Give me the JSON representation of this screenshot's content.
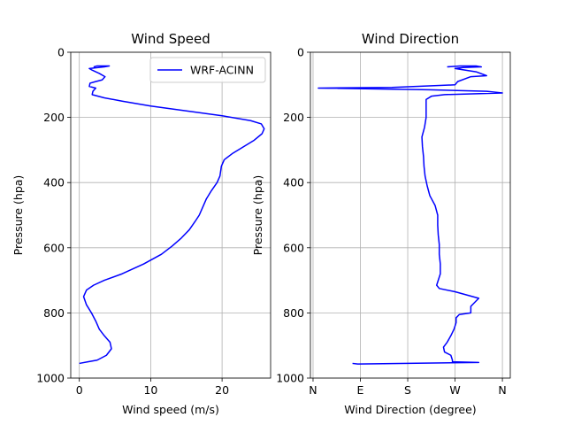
{
  "colors": {
    "series": "#0000ff",
    "grid": "#b0b0b0",
    "axis": "#000000"
  },
  "chart_data": [
    {
      "type": "line",
      "title": "Wind Speed",
      "xlabel": "Wind speed (m/s)",
      "ylabel": "Pressure (hpa)",
      "xlim": [
        -1.2,
        26.8
      ],
      "ylim": [
        1000,
        0
      ],
      "y_inverted": true,
      "grid": true,
      "legend": {
        "placement": "top-right",
        "entries": [
          "WRF-ACINN"
        ]
      },
      "xticks": [
        {
          "value": 0,
          "label": "0"
        },
        {
          "value": 10,
          "label": "10"
        },
        {
          "value": 20,
          "label": "20"
        }
      ],
      "yticks": [
        {
          "value": 0,
          "label": "0"
        },
        {
          "value": 200,
          "label": "200"
        },
        {
          "value": 400,
          "label": "400"
        },
        {
          "value": 600,
          "label": "600"
        },
        {
          "value": 800,
          "label": "800"
        },
        {
          "value": 1000,
          "label": "1000"
        }
      ],
      "series": [
        {
          "name": "WRF-ACINN",
          "color": "#0000ff",
          "points": [
            [
              0,
              955
            ],
            [
              1.2,
              950
            ],
            [
              2.5,
              945
            ],
            [
              3.8,
              930
            ],
            [
              4.5,
              910
            ],
            [
              4.3,
              890
            ],
            [
              3.5,
              870
            ],
            [
              2.8,
              850
            ],
            [
              2.3,
              825
            ],
            [
              1.7,
              800
            ],
            [
              1.0,
              775
            ],
            [
              0.6,
              750
            ],
            [
              1.0,
              730
            ],
            [
              2.0,
              715
            ],
            [
              3.5,
              700
            ],
            [
              6.0,
              680
            ],
            [
              9.0,
              650
            ],
            [
              11.5,
              620
            ],
            [
              13.0,
              595
            ],
            [
              14.3,
              570
            ],
            [
              15.4,
              545
            ],
            [
              16.2,
              520
            ],
            [
              16.8,
              500
            ],
            [
              17.3,
              475
            ],
            [
              17.8,
              450
            ],
            [
              18.5,
              425
            ],
            [
              19.3,
              400
            ],
            [
              19.7,
              380
            ],
            [
              19.9,
              350
            ],
            [
              20.3,
              330
            ],
            [
              21.5,
              310
            ],
            [
              23.0,
              290
            ],
            [
              24.5,
              270
            ],
            [
              25.6,
              250
            ],
            [
              25.9,
              235
            ],
            [
              25.5,
              220
            ],
            [
              24.0,
              210
            ],
            [
              20.0,
              195
            ],
            [
              15.0,
              180
            ],
            [
              10.0,
              165
            ],
            [
              6.0,
              150
            ],
            [
              3.5,
              140
            ],
            [
              1.8,
              130
            ],
            [
              1.9,
              120
            ],
            [
              2.3,
              110
            ],
            [
              1.4,
              105
            ],
            [
              1.5,
              95
            ],
            [
              2.3,
              90
            ],
            [
              3.2,
              85
            ],
            [
              3.6,
              75
            ],
            [
              2.8,
              65
            ],
            [
              1.8,
              55
            ],
            [
              1.4,
              50
            ],
            [
              3.5,
              45
            ],
            [
              4.2,
              42
            ],
            [
              2.5,
              42
            ],
            [
              2.0,
              45
            ]
          ]
        }
      ]
    },
    {
      "type": "line",
      "title": "Wind Direction",
      "xlabel": "Wind Direction (degree)",
      "ylabel": "Pressure (hpa)",
      "xlim": [
        -5,
        375
      ],
      "ylim": [
        1000,
        0
      ],
      "y_inverted": true,
      "grid": true,
      "xticks": [
        {
          "value": 0,
          "label": "N"
        },
        {
          "value": 90,
          "label": "E"
        },
        {
          "value": 180,
          "label": "S"
        },
        {
          "value": 270,
          "label": "W"
        },
        {
          "value": 360,
          "label": "N"
        }
      ],
      "yticks": [
        {
          "value": 0,
          "label": "0"
        },
        {
          "value": 200,
          "label": "200"
        },
        {
          "value": 400,
          "label": "400"
        },
        {
          "value": 600,
          "label": "600"
        },
        {
          "value": 800,
          "label": "800"
        },
        {
          "value": 1000,
          "label": "1000"
        }
      ],
      "series": [
        {
          "name": "WRF-ACINN",
          "color": "#0000ff",
          "points": [
            [
              75,
              955
            ],
            [
              85,
              957
            ],
            [
              315,
              952
            ],
            [
              265,
              950
            ],
            [
              265,
              945
            ],
            [
              262,
              930
            ],
            [
              250,
              920
            ],
            [
              248,
              905
            ],
            [
              255,
              890
            ],
            [
              262,
              870
            ],
            [
              268,
              850
            ],
            [
              272,
              830
            ],
            [
              272,
              815
            ],
            [
              278,
              805
            ],
            [
              300,
              800
            ],
            [
              300,
              780
            ],
            [
              315,
              755
            ],
            [
              270,
              735
            ],
            [
              240,
              725
            ],
            [
              235,
              715
            ],
            [
              238,
              700
            ],
            [
              242,
              680
            ],
            [
              242,
              650
            ],
            [
              240,
              620
            ],
            [
              240,
              590
            ],
            [
              238,
              560
            ],
            [
              237,
              530
            ],
            [
              237,
              500
            ],
            [
              232,
              470
            ],
            [
              222,
              440
            ],
            [
              217,
              410
            ],
            [
              213,
              380
            ],
            [
              211,
              350
            ],
            [
              210,
              320
            ],
            [
              208,
              290
            ],
            [
              207,
              260
            ],
            [
              212,
              230
            ],
            [
              215,
              200
            ],
            [
              215,
              170
            ],
            [
              215,
              145
            ],
            [
              225,
              135
            ],
            [
              250,
              130
            ],
            [
              360,
              125
            ],
            [
              330,
              120
            ],
            [
              220,
              115
            ],
            [
              10,
              110
            ],
            [
              150,
              108
            ],
            [
              270,
              100
            ],
            [
              275,
              90
            ],
            [
              300,
              75
            ],
            [
              330,
              72
            ],
            [
              310,
              60
            ],
            [
              270,
              50
            ],
            [
              285,
              47
            ],
            [
              320,
              45
            ],
            [
              310,
              42
            ],
            [
              280,
              42
            ],
            [
              255,
              45
            ]
          ]
        }
      ]
    }
  ]
}
